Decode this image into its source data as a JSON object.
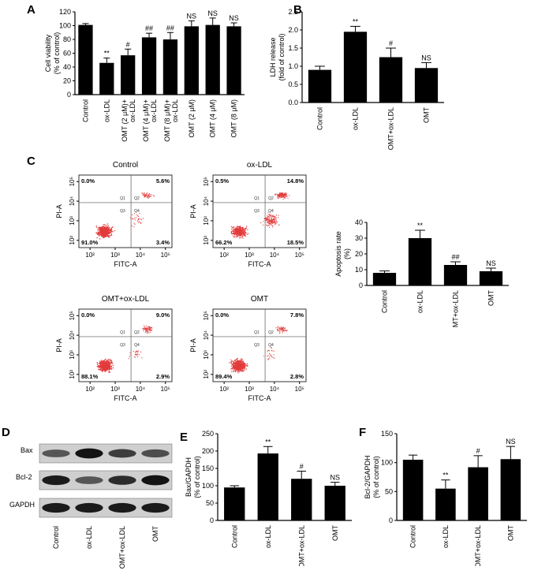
{
  "panels": {
    "A": {
      "letter": "A",
      "ylabel": "Cell viability\n(% of control)",
      "chart_data": {
        "type": "bar",
        "categories": [
          "Control",
          "ox-LDL",
          "OMT (2 μM)+ ox-LDL",
          "OMT (4 μM)+ ox-LDL",
          "OMT (8 μM)+ ox-LDL",
          "OMT (2 μM)",
          "OMT (4 μM)",
          "OMT (8 μM)"
        ],
        "values": [
          101,
          46,
          57,
          83,
          80,
          99,
          101,
          99
        ],
        "errors": [
          2,
          7,
          9,
          6,
          10,
          8,
          10,
          5
        ],
        "annotations": [
          "",
          "**",
          "#",
          "##",
          "##",
          "NS",
          "NS",
          "NS"
        ],
        "ylim": [
          0,
          120
        ],
        "yticks": [
          0,
          20,
          40,
          60,
          80,
          100,
          120
        ]
      }
    },
    "B": {
      "letter": "B",
      "ylabel": "LDH release\n(fold of control)",
      "chart_data": {
        "type": "bar",
        "categories": [
          "Control",
          "ox-LDL",
          "OMT+ox-LDL",
          "OMT"
        ],
        "values": [
          0.9,
          1.95,
          1.25,
          0.95
        ],
        "errors": [
          0.1,
          0.15,
          0.25,
          0.15
        ],
        "annotations": [
          "",
          "**",
          "#",
          "NS"
        ],
        "ylim": [
          0,
          2.5
        ],
        "yticks": [
          0.0,
          0.5,
          1.0,
          1.5,
          2.0,
          2.5
        ]
      }
    },
    "C": {
      "letter": "C",
      "flow_plots": [
        {
          "title": "Control",
          "q1": "0.0%",
          "q2": "5.6%",
          "q3": "91.0%",
          "q4": "3.4%"
        },
        {
          "title": "ox-LDL",
          "q1": "0.5%",
          "q2": "14.8%",
          "q3": "66.2%",
          "q4": "18.5%"
        },
        {
          "title": "OMT+ox-LDL",
          "q1": "0.0%",
          "q2": "9.0%",
          "q3": "88.1%",
          "q4": "2.9%"
        },
        {
          "title": "OMT",
          "q1": "0.0%",
          "q2": "7.8%",
          "q3": "89.4%",
          "q4": "2.8%"
        }
      ],
      "flow_axis": {
        "x": "FITC-A",
        "y": "PI-A",
        "ticks": [
          "10²",
          "10³",
          "10⁴",
          "10⁵"
        ],
        "quads": [
          "Q1",
          "Q2",
          "Q3",
          "Q4"
        ]
      },
      "ylabel": "Apoptosis rate\n(%)",
      "chart_data": {
        "type": "bar",
        "categories": [
          "Control",
          "ox-LDL",
          "OMT+ox-LDL",
          "OMT"
        ],
        "values": [
          8,
          30,
          13,
          9
        ],
        "errors": [
          1.2,
          5,
          2,
          2
        ],
        "annotations": [
          "",
          "**",
          "##",
          "NS"
        ],
        "ylim": [
          0,
          40
        ],
        "yticks": [
          0,
          10,
          20,
          30,
          40
        ]
      }
    },
    "D": {
      "letter": "D",
      "rows": [
        "Bax",
        "Bcl-2",
        "GAPDH"
      ],
      "lanes": [
        "Control",
        "ox-LDL",
        "OMT+ox-LDL",
        "OMT"
      ]
    },
    "E": {
      "letter": "E",
      "ylabel": "Bax/GAPDH\n(% of control)",
      "chart_data": {
        "type": "bar",
        "categories": [
          "Control",
          "ox-LDL",
          "OMT+ox-LDL",
          "OMT"
        ],
        "values": [
          95,
          193,
          120,
          100
        ],
        "errors": [
          5,
          20,
          22,
          10
        ],
        "annotations": [
          "",
          "**",
          "#",
          "NS"
        ],
        "ylim": [
          0,
          250
        ],
        "yticks": [
          0,
          50,
          100,
          150,
          200,
          250
        ]
      }
    },
    "F": {
      "letter": "F",
      "ylabel": "Bcl-2/GAPDH\n(% of control)",
      "chart_data": {
        "type": "bar",
        "categories": [
          "Control",
          "ox-LDL",
          "OMT+ox-LDL",
          "OMT"
        ],
        "values": [
          105,
          55,
          92,
          106
        ],
        "errors": [
          8,
          15,
          20,
          22
        ],
        "annotations": [
          "",
          "**",
          "#",
          "NS"
        ],
        "ylim": [
          0,
          150
        ],
        "yticks": [
          0,
          50,
          100,
          150
        ]
      }
    }
  }
}
